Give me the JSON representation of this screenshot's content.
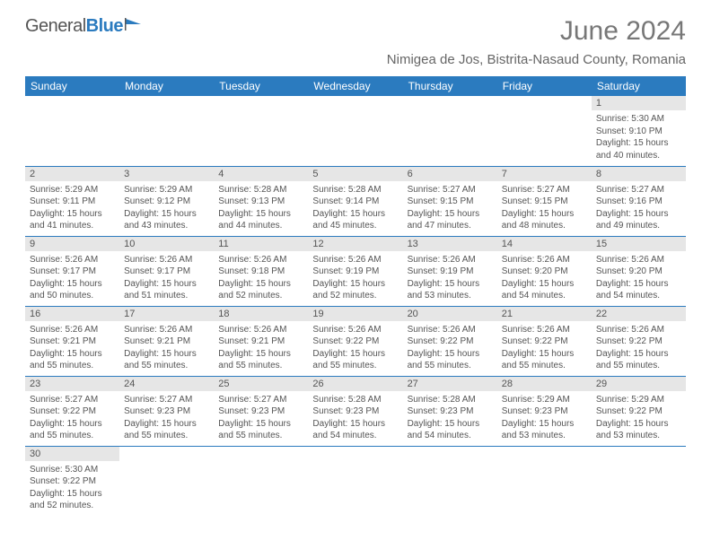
{
  "logo": {
    "text_a": "General",
    "text_b": "Blue"
  },
  "title": "June 2024",
  "location": "Nimigea de Jos, Bistrita-Nasaud County, Romania",
  "colors": {
    "header_bg": "#2b7bbf",
    "header_text": "#ffffff",
    "day_head_bg": "#e6e6e6",
    "text": "#555555",
    "border": "#2b7bbf",
    "title_color": "#777777"
  },
  "weekdays": [
    "Sunday",
    "Monday",
    "Tuesday",
    "Wednesday",
    "Thursday",
    "Friday",
    "Saturday"
  ],
  "weeks": [
    [
      null,
      null,
      null,
      null,
      null,
      null,
      {
        "n": "1",
        "sunrise": "5:30 AM",
        "sunset": "9:10 PM",
        "dl_h": "15",
        "dl_m": "40"
      }
    ],
    [
      {
        "n": "2",
        "sunrise": "5:29 AM",
        "sunset": "9:11 PM",
        "dl_h": "15",
        "dl_m": "41"
      },
      {
        "n": "3",
        "sunrise": "5:29 AM",
        "sunset": "9:12 PM",
        "dl_h": "15",
        "dl_m": "43"
      },
      {
        "n": "4",
        "sunrise": "5:28 AM",
        "sunset": "9:13 PM",
        "dl_h": "15",
        "dl_m": "44"
      },
      {
        "n": "5",
        "sunrise": "5:28 AM",
        "sunset": "9:14 PM",
        "dl_h": "15",
        "dl_m": "45"
      },
      {
        "n": "6",
        "sunrise": "5:27 AM",
        "sunset": "9:15 PM",
        "dl_h": "15",
        "dl_m": "47"
      },
      {
        "n": "7",
        "sunrise": "5:27 AM",
        "sunset": "9:15 PM",
        "dl_h": "15",
        "dl_m": "48"
      },
      {
        "n": "8",
        "sunrise": "5:27 AM",
        "sunset": "9:16 PM",
        "dl_h": "15",
        "dl_m": "49"
      }
    ],
    [
      {
        "n": "9",
        "sunrise": "5:26 AM",
        "sunset": "9:17 PM",
        "dl_h": "15",
        "dl_m": "50"
      },
      {
        "n": "10",
        "sunrise": "5:26 AM",
        "sunset": "9:17 PM",
        "dl_h": "15",
        "dl_m": "51"
      },
      {
        "n": "11",
        "sunrise": "5:26 AM",
        "sunset": "9:18 PM",
        "dl_h": "15",
        "dl_m": "52"
      },
      {
        "n": "12",
        "sunrise": "5:26 AM",
        "sunset": "9:19 PM",
        "dl_h": "15",
        "dl_m": "52"
      },
      {
        "n": "13",
        "sunrise": "5:26 AM",
        "sunset": "9:19 PM",
        "dl_h": "15",
        "dl_m": "53"
      },
      {
        "n": "14",
        "sunrise": "5:26 AM",
        "sunset": "9:20 PM",
        "dl_h": "15",
        "dl_m": "54"
      },
      {
        "n": "15",
        "sunrise": "5:26 AM",
        "sunset": "9:20 PM",
        "dl_h": "15",
        "dl_m": "54"
      }
    ],
    [
      {
        "n": "16",
        "sunrise": "5:26 AM",
        "sunset": "9:21 PM",
        "dl_h": "15",
        "dl_m": "55"
      },
      {
        "n": "17",
        "sunrise": "5:26 AM",
        "sunset": "9:21 PM",
        "dl_h": "15",
        "dl_m": "55"
      },
      {
        "n": "18",
        "sunrise": "5:26 AM",
        "sunset": "9:21 PM",
        "dl_h": "15",
        "dl_m": "55"
      },
      {
        "n": "19",
        "sunrise": "5:26 AM",
        "sunset": "9:22 PM",
        "dl_h": "15",
        "dl_m": "55"
      },
      {
        "n": "20",
        "sunrise": "5:26 AM",
        "sunset": "9:22 PM",
        "dl_h": "15",
        "dl_m": "55"
      },
      {
        "n": "21",
        "sunrise": "5:26 AM",
        "sunset": "9:22 PM",
        "dl_h": "15",
        "dl_m": "55"
      },
      {
        "n": "22",
        "sunrise": "5:26 AM",
        "sunset": "9:22 PM",
        "dl_h": "15",
        "dl_m": "55"
      }
    ],
    [
      {
        "n": "23",
        "sunrise": "5:27 AM",
        "sunset": "9:22 PM",
        "dl_h": "15",
        "dl_m": "55"
      },
      {
        "n": "24",
        "sunrise": "5:27 AM",
        "sunset": "9:23 PM",
        "dl_h": "15",
        "dl_m": "55"
      },
      {
        "n": "25",
        "sunrise": "5:27 AM",
        "sunset": "9:23 PM",
        "dl_h": "15",
        "dl_m": "55"
      },
      {
        "n": "26",
        "sunrise": "5:28 AM",
        "sunset": "9:23 PM",
        "dl_h": "15",
        "dl_m": "54"
      },
      {
        "n": "27",
        "sunrise": "5:28 AM",
        "sunset": "9:23 PM",
        "dl_h": "15",
        "dl_m": "54"
      },
      {
        "n": "28",
        "sunrise": "5:29 AM",
        "sunset": "9:23 PM",
        "dl_h": "15",
        "dl_m": "53"
      },
      {
        "n": "29",
        "sunrise": "5:29 AM",
        "sunset": "9:22 PM",
        "dl_h": "15",
        "dl_m": "53"
      }
    ],
    [
      {
        "n": "30",
        "sunrise": "5:30 AM",
        "sunset": "9:22 PM",
        "dl_h": "15",
        "dl_m": "52"
      },
      null,
      null,
      null,
      null,
      null,
      null
    ]
  ],
  "labels": {
    "sunrise": "Sunrise:",
    "sunset": "Sunset:",
    "daylight": "Daylight:",
    "hours_and": "hours",
    "and": "and",
    "minutes": "minutes."
  }
}
